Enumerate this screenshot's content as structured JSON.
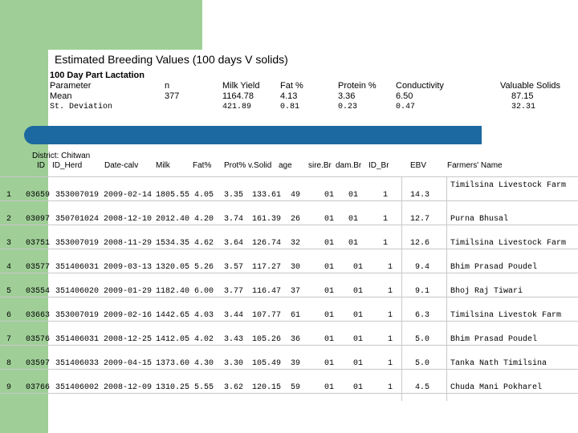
{
  "title": "Estimated Breeding Values  (100 days V solids)",
  "summary": {
    "heading": "100 Day Part Lactation",
    "labels": [
      "Parameter",
      "Mean",
      "St. Deviation"
    ],
    "columns": [
      {
        "name": "n",
        "mean": "377",
        "sd": ""
      },
      {
        "name": "Milk Yield",
        "mean": "1164.78",
        "sd": "421.89"
      },
      {
        "name": "Fat %",
        "mean": "4.13",
        "sd": "0.81"
      },
      {
        "name": "Protein %",
        "mean": "3.36",
        "sd": "0.23"
      },
      {
        "name": "Conductivity",
        "mean": "6.50",
        "sd": "0.47"
      },
      {
        "name": "Valuable Solids",
        "mean": "87.15",
        "sd": "32.31"
      }
    ]
  },
  "district": "District: Chitwan",
  "headers": {
    "id": "ID",
    "id_herd": "ID_Herd",
    "date": "Date-calv",
    "milk": "Milk",
    "fat": "Fat%",
    "prot": "Prot%",
    "vsolid": "v.Solid",
    "age": "age",
    "sire": "sire.Br",
    "dam": "dam.Br",
    "idbr": "ID_Br",
    "ebv": "EBV",
    "farmer": "Farmers' Name"
  },
  "rows": [
    {
      "rank": "1",
      "id": "03659",
      "herd": "353007019",
      "date": "2009-02-14",
      "milk": "1805.55",
      "fat": "4.05",
      "prot": "3.35",
      "vsolid": "133.61",
      "age": "49",
      "sire": "01",
      "dam": "01",
      "idbr": "1",
      "ebv": "14.3",
      "farmer": "Timilsina Livestock Farm"
    },
    {
      "rank": "2",
      "id": "03097",
      "herd": "350701024",
      "date": "2008-12-10",
      "milk": "2012.40",
      "fat": "4.20",
      "prot": "3.74",
      "vsolid": "161.39",
      "age": "26",
      "sire": "01",
      "dam": "01",
      "idbr": "1",
      "ebv": "12.7",
      "farmer": "Purna Bhusal"
    },
    {
      "rank": "3",
      "id": "03751",
      "herd": "353007019",
      "date": "2008-11-29",
      "milk": "1534.35",
      "fat": "4.62",
      "prot": "3.64",
      "vsolid": "126.74",
      "age": "32",
      "sire": "01",
      "dam": "01",
      "idbr": "1",
      "ebv": "12.6",
      "farmer": "Timilsina Livestock Farm"
    },
    {
      "rank": "4",
      "id": "03577",
      "herd": "351406031",
      "date": "2009-03-13",
      "milk": "1320.05",
      "fat": "5.26",
      "prot": "3.57",
      "vsolid": "117.27",
      "age": "30",
      "sire": "01",
      "dam": "01",
      "idbr": "1",
      "ebv": "9.4",
      "farmer": "Bhim Prasad Poudel"
    },
    {
      "rank": "5",
      "id": "03554",
      "herd": "351406020",
      "date": "2009-01-29",
      "milk": "1182.40",
      "fat": "6.00",
      "prot": "3.77",
      "vsolid": "116.47",
      "age": "37",
      "sire": "01",
      "dam": "01",
      "idbr": "1",
      "ebv": "9.1",
      "farmer": "Bhoj Raj Tiwari"
    },
    {
      "rank": "6",
      "id": "03663",
      "herd": "353007019",
      "date": "2009-02-16",
      "milk": "1442.65",
      "fat": "4.03",
      "prot": "3.44",
      "vsolid": "107.77",
      "age": "61",
      "sire": "01",
      "dam": "01",
      "idbr": "1",
      "ebv": "6.3",
      "farmer": "Timilsina Livestok Farm"
    },
    {
      "rank": "7",
      "id": "03576",
      "herd": "351406031",
      "date": "2008-12-25",
      "milk": "1412.05",
      "fat": "4.02",
      "prot": "3.43",
      "vsolid": "105.26",
      "age": "36",
      "sire": "01",
      "dam": "01",
      "idbr": "1",
      "ebv": "5.0",
      "farmer": "Bhim Prasad Poudel"
    },
    {
      "rank": "8",
      "id": "03597",
      "herd": "351406033",
      "date": "2009-04-15",
      "milk": "1373.60",
      "fat": "4.30",
      "prot": "3.30",
      "vsolid": "105.49",
      "age": "39",
      "sire": "01",
      "dam": "01",
      "idbr": "1",
      "ebv": "5.0",
      "farmer": "Tanka Nath Timilsina"
    },
    {
      "rank": "9",
      "id": "03766",
      "herd": "351406002",
      "date": "2008-12-09",
      "milk": "1310.25",
      "fat": "5.55",
      "prot": "3.62",
      "vsolid": "120.15",
      "age": "59",
      "sire": "01",
      "dam": "01",
      "idbr": "1",
      "ebv": "4.5",
      "farmer": "Chuda Mani Pokharel"
    }
  ]
}
